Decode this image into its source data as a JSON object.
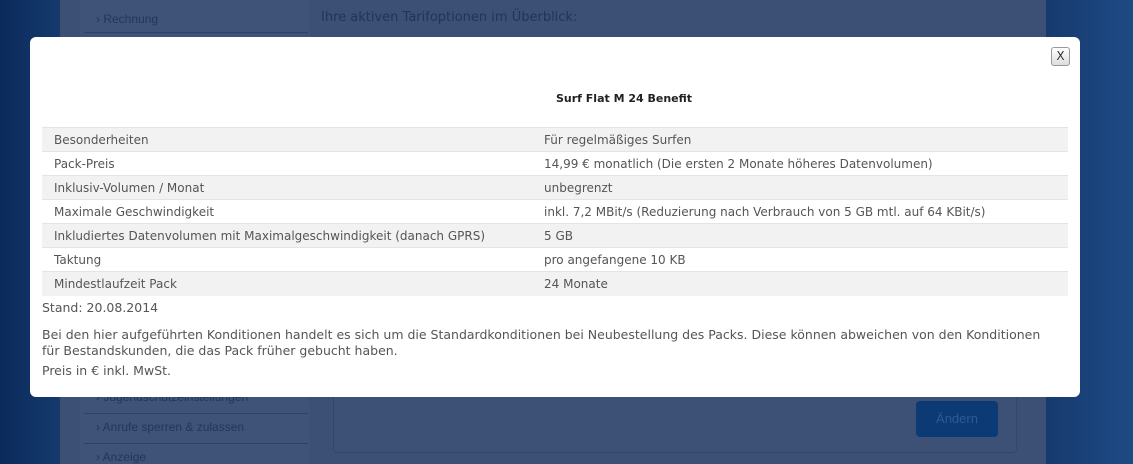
{
  "background": {
    "sidebar": [
      "Rechnung",
      "Jugendschutzeinstellungen",
      "Anrufe sperren & zulassen",
      "Anzeige"
    ],
    "intro": "Ihre aktiven Tarifoptionen im Überblick:",
    "change_button": "Ändern"
  },
  "modal": {
    "close_label": "X",
    "title": "Surf Flat M 24 Benefit",
    "rows": [
      {
        "label": "Besonderheiten",
        "value": "Für regelmäßiges Surfen"
      },
      {
        "label": "Pack-Preis",
        "value": "14,99 € monatlich (Die ersten 2 Monate höheres Datenvolumen)"
      },
      {
        "label": "Inklusiv-Volumen / Monat",
        "value": "unbegrenzt"
      },
      {
        "label": "Maximale Geschwindigkeit",
        "value": "inkl. 7,2 MBit/s (Reduzierung nach Verbrauch von 5 GB mtl. auf 64 KBit/s)"
      },
      {
        "label": "Inkludiertes Datenvolumen mit Maximalgeschwindigkeit (danach GPRS)",
        "value": "5 GB"
      },
      {
        "label": "Taktung",
        "value": "pro angefangene 10 KB"
      },
      {
        "label": "Mindestlaufzeit Pack",
        "value": "24 Monate"
      }
    ],
    "stand": "Stand: 20.08.2014",
    "note": "Bei den hier aufgeführten Konditionen handelt es sich um die Standardkonditionen bei Neubestellung des Packs. Diese können abweichen von den Konditionen für Bestandskunden, die das Pack früher gebucht haben.",
    "price_note": "Preis in € inkl. MwSt."
  }
}
